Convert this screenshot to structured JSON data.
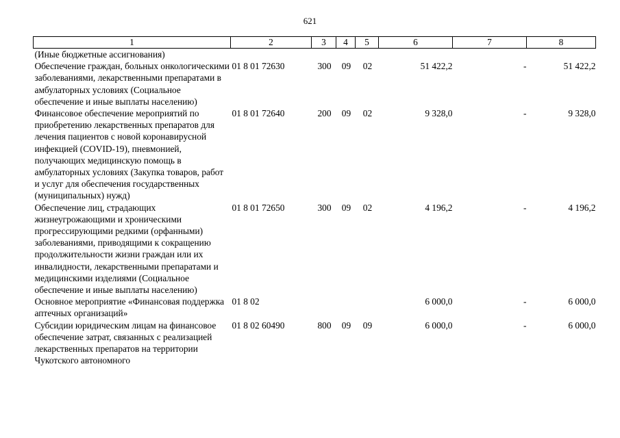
{
  "page_number": "621",
  "header": [
    "1",
    "2",
    "3",
    "4",
    "5",
    "6",
    "7",
    "8"
  ],
  "rows": [
    {
      "description": "(Иные бюджетные ассигнования)",
      "code": "",
      "vr": "",
      "rz": "",
      "pr": "",
      "col6": "",
      "col7": "",
      "col8": ""
    },
    {
      "description": "Обеспечение граждан, больных онкологическими заболеваниями, лекарственными препаратами в амбулаторных условиях (Социальное обеспечение и иные выплаты населению)",
      "code": "01 8 01 72630",
      "vr": "300",
      "rz": "09",
      "pr": "02",
      "col6": "51 422,2",
      "col7": "-",
      "col8": "51 422,2"
    },
    {
      "description": "Финансовое обеспечение мероприятий по приобретению лекарственных препаратов для лечения пациентов с новой коронавирусной инфекцией (COVID-19), пневмонией, получающих медицинскую помощь в амбулаторных условиях (Закупка товаров, работ и услуг для обеспечения государственных (муниципальных) нужд)",
      "code": "01 8 01 72640",
      "vr": "200",
      "rz": "09",
      "pr": "02",
      "col6": "9 328,0",
      "col7": "-",
      "col8": "9 328,0"
    },
    {
      "description": "Обеспечение лиц, страдающих жизнеугрожающими и хроническими прогрессирующими редкими (орфанными) заболеваниями, приводящими к сокращению продолжительности жизни граждан или их инвалидности, лекарственными препаратами и медицинскими изделиями (Социальное обеспечение и иные выплаты населению)",
      "code": "01 8 01 72650",
      "vr": "300",
      "rz": "09",
      "pr": "02",
      "col6": "4 196,2",
      "col7": "-",
      "col8": "4 196,2"
    },
    {
      "description": "Основное мероприятие «Финансовая поддержка аптечных организаций»",
      "code": "01 8 02",
      "vr": "",
      "rz": "",
      "pr": "",
      "col6": "6 000,0",
      "col7": "-",
      "col8": "6 000,0"
    },
    {
      "description": "Субсидии юридическим лицам на финансовое обеспечение затрат, связанных с реализацией лекарственных препаратов на территории Чукотского автономного",
      "code": "01 8 02 60490",
      "vr": "800",
      "rz": "09",
      "pr": "09",
      "col6": "6 000,0",
      "col7": "-",
      "col8": "6 000,0"
    }
  ]
}
